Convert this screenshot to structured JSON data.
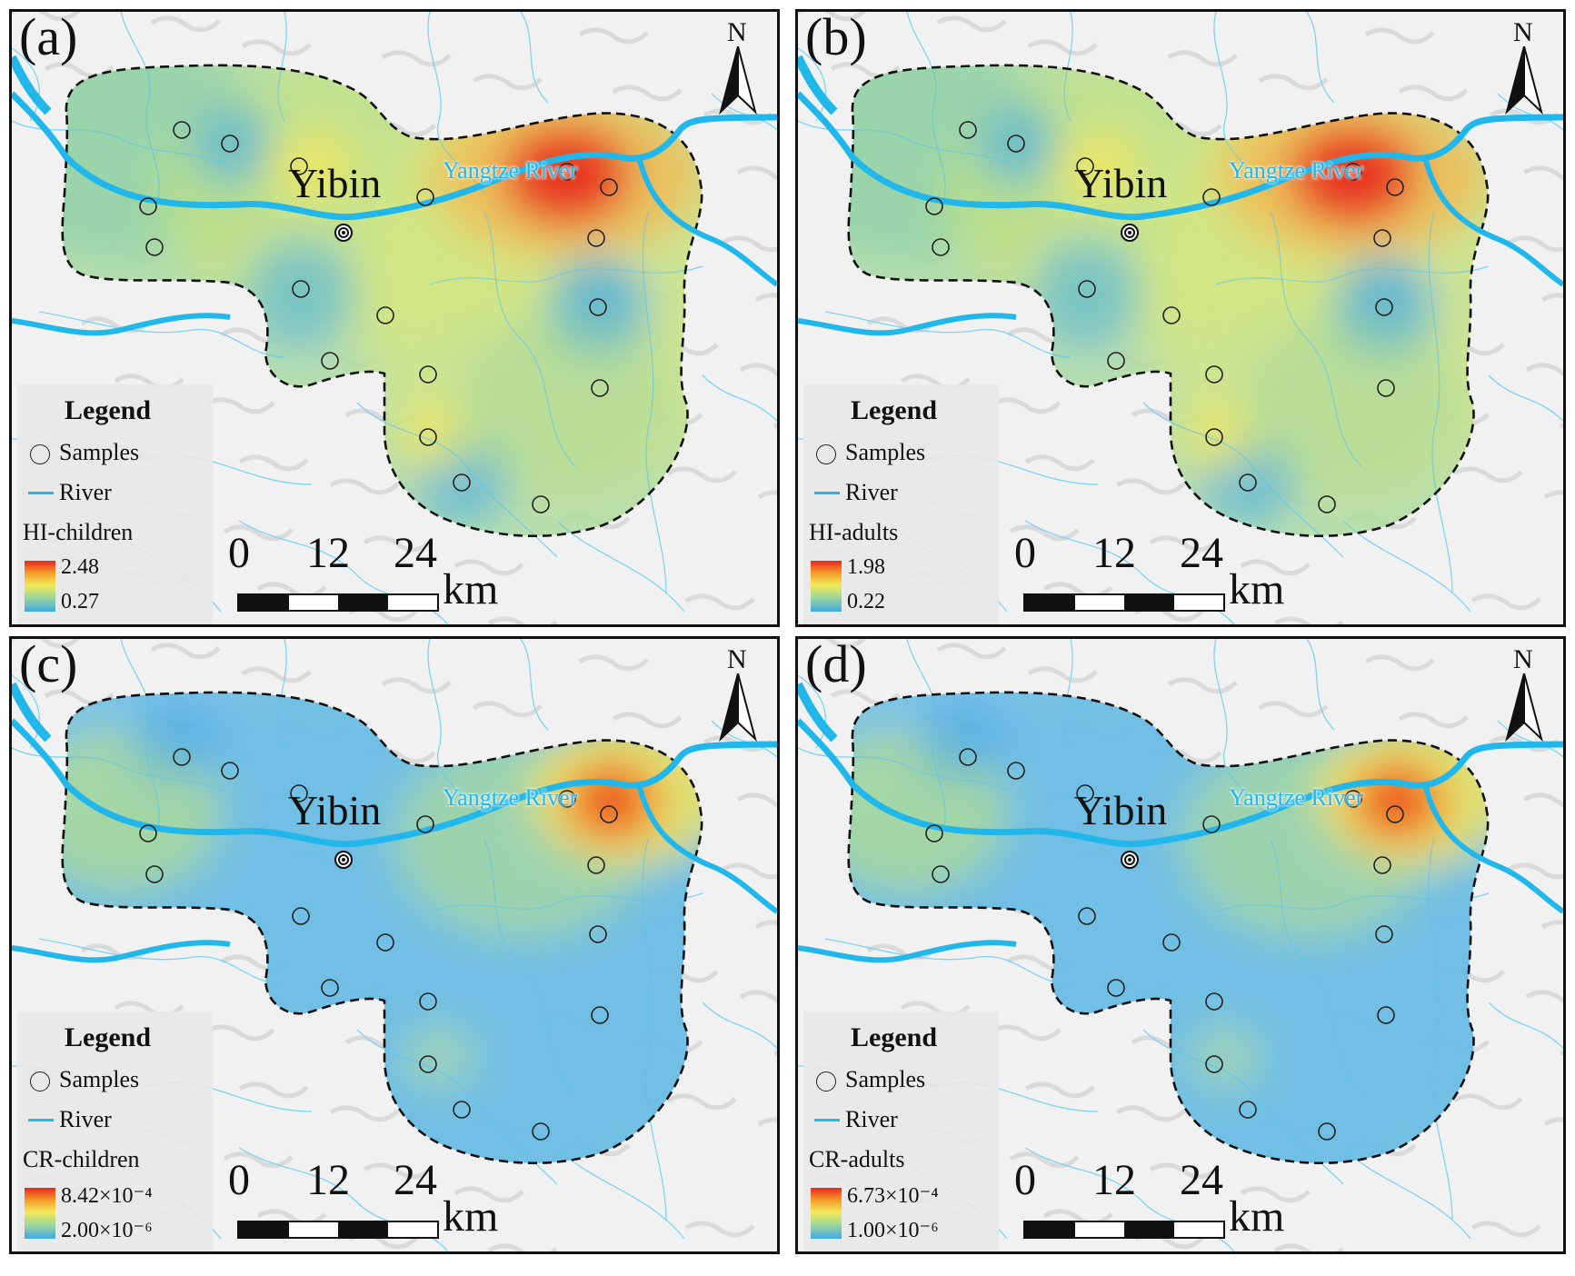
{
  "shared": {
    "city": "Yibin",
    "river_label": "Yangtze River",
    "north": "N",
    "legend_title": "Legend",
    "legend_samples": "Samples",
    "legend_river": "River",
    "scale_0": "0",
    "scale_12": "12",
    "scale_24": "24",
    "scale_unit": "km",
    "colors": {
      "high": "#e8281e",
      "mid": "#f2ea5a",
      "low": "#3fa9e6",
      "river": "#22b7ea"
    }
  },
  "panels": [
    {
      "label": "(a)",
      "variable": "HI-children",
      "max": "2.48",
      "min": "0.27"
    },
    {
      "label": "(b)",
      "variable": "HI-adults",
      "max": "1.98",
      "min": "0.22"
    },
    {
      "label": "(c)",
      "variable": "CR-children",
      "max": "8.42×10⁻⁴",
      "min": "2.00×10⁻⁶"
    },
    {
      "label": "(d)",
      "variable": "CR-adults",
      "max": "6.73×10⁻⁴",
      "min": "1.00×10⁻⁶"
    }
  ]
}
